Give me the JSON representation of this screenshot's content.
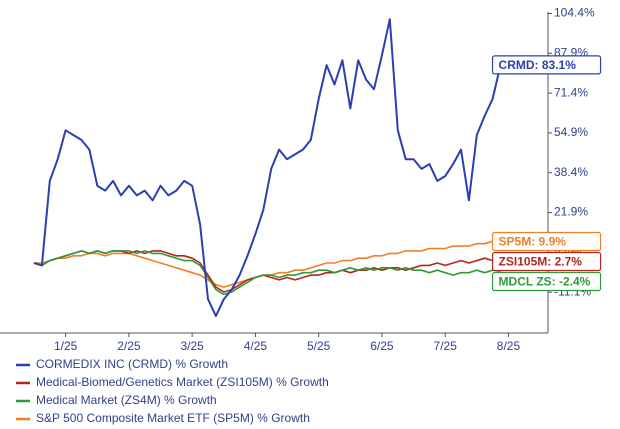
{
  "chart_data": {
    "type": "line",
    "categories": [
      null,
      null,
      null,
      null,
      "1/25",
      null,
      null,
      null,
      null,
      null,
      null,
      null,
      "2/25",
      null,
      null,
      null,
      null,
      null,
      null,
      null,
      "3/25",
      null,
      null,
      null,
      null,
      null,
      null,
      null,
      "4/25",
      null,
      null,
      null,
      null,
      null,
      null,
      null,
      "5/25",
      null,
      null,
      null,
      null,
      null,
      null,
      null,
      "6/25",
      null,
      null,
      null,
      null,
      null,
      null,
      null,
      "7/25",
      null,
      null,
      null,
      null,
      null,
      null,
      null,
      "8/25",
      null,
      null,
      null,
      null,
      null
    ],
    "ylim": [
      -28,
      105
    ],
    "yticks": [
      {
        "value": -11.1,
        "label": "-11.1%"
      },
      {
        "value": 5.4,
        "label": "5.4%"
      },
      {
        "value": 21.9,
        "label": "21.9%"
      },
      {
        "value": 38.4,
        "label": "38.4%"
      },
      {
        "value": 54.9,
        "label": "54.9%"
      },
      {
        "value": 71.4,
        "label": "71.4%"
      },
      {
        "value": 87.9,
        "label": "87.9%"
      },
      {
        "value": 104.4,
        "label": "104.4%"
      }
    ],
    "series": [
      {
        "name": "CORMEDIX INC (CRMD) % Growth",
        "color": "#2b3fb0",
        "end_label": "CRMD: 83.1%",
        "values": [
          1,
          0,
          35,
          44,
          56,
          54,
          52,
          48,
          33,
          31,
          35,
          29,
          33,
          29,
          31,
          27,
          33,
          29,
          31,
          35,
          33,
          17,
          -14,
          -21,
          -14,
          -10,
          -4,
          4,
          13,
          23,
          40,
          48,
          44,
          46,
          48,
          52,
          69,
          83,
          75,
          85,
          65,
          85,
          77,
          73,
          87,
          102,
          56,
          44,
          44,
          40,
          42,
          35,
          37,
          42,
          48,
          27,
          54,
          62,
          69,
          83.1,
          null,
          null,
          null,
          null,
          null,
          null
        ]
      },
      {
        "name": "Medical-Biomed/Genetics Market (ZSI105M) % Growth",
        "color": "#b3261e",
        "end_label": "ZSI105M: 2.7%",
        "values": [
          1,
          0,
          2,
          3,
          4,
          5,
          6,
          5,
          6,
          5,
          6,
          6,
          5,
          6,
          5,
          6,
          6,
          5,
          4,
          4,
          3,
          1,
          -4,
          -9,
          -11,
          -10,
          -8,
          -6,
          -5,
          -4,
          -5,
          -6,
          -5,
          -6,
          -5,
          -4,
          -4,
          -3,
          -3,
          -2,
          -3,
          -2,
          -2,
          -1,
          -2,
          -1,
          -1,
          -2,
          -1,
          0,
          0,
          1,
          0,
          1,
          2,
          1,
          2,
          3,
          2,
          2.7,
          null,
          null,
          null,
          null,
          null,
          null
        ]
      },
      {
        "name": "Medical Market (ZS4M) % Growth",
        "color": "#2e9a3a",
        "end_label": "MDCL ZS: -2.4%",
        "values": [
          1,
          0,
          2,
          3,
          4,
          5,
          6,
          5,
          6,
          5,
          6,
          6,
          6,
          5,
          6,
          5,
          5,
          4,
          3,
          2,
          2,
          0,
          -5,
          -10,
          -12,
          -11,
          -9,
          -7,
          -5,
          -4,
          -4,
          -5,
          -4,
          -4,
          -3,
          -3,
          -2,
          -2,
          -3,
          -2,
          -1,
          -2,
          -1,
          -2,
          -1,
          -1,
          -2,
          -1,
          -2,
          -2,
          -3,
          -2,
          -3,
          -4,
          -3,
          -3,
          -2,
          -3,
          -2,
          -2.4,
          null,
          null,
          null,
          null,
          null,
          null
        ]
      },
      {
        "name": "S&P 500 Composite Market ETF (SP5M) % Growth",
        "color": "#f07f2a",
        "end_label": "SP5M: 9.9%",
        "values": [
          1,
          1,
          2,
          3,
          3,
          4,
          4,
          5,
          5,
          4,
          5,
          5,
          5,
          4,
          3,
          2,
          1,
          0,
          -1,
          -2,
          -3,
          -4,
          -6,
          -8,
          -9,
          -8,
          -7,
          -6,
          -5,
          -4,
          -4,
          -3,
          -3,
          -2,
          -2,
          -1,
          0,
          1,
          1,
          2,
          2,
          3,
          3,
          4,
          4,
          5,
          5,
          6,
          6,
          6,
          7,
          7,
          7,
          8,
          8,
          8,
          9,
          9,
          10,
          9.9,
          null,
          null,
          null,
          null,
          null,
          null
        ]
      }
    ]
  }
}
